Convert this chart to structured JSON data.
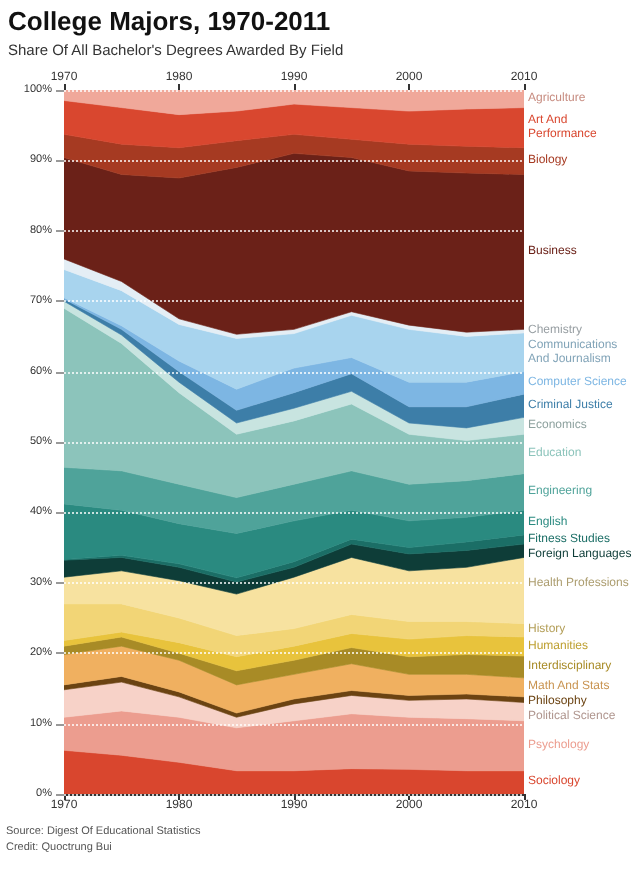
{
  "chart_data": {
    "type": "area",
    "stacked": true,
    "title": "College Majors, 1970-2011",
    "subtitle": "Share Of All Bachelor's Degrees Awarded By Field",
    "annotations": [
      "Source: Digest Of Educational Statistics",
      "Credit: Quoctrung Bui"
    ],
    "x": [
      1970,
      1975,
      1980,
      1985,
      1990,
      1995,
      2000,
      2005,
      2010
    ],
    "xlim": [
      1970,
      2010
    ],
    "xticks": [
      1970,
      1980,
      1990,
      2000,
      2010
    ],
    "x2lim": [
      1970,
      2010
    ],
    "x2ticks": [
      1970,
      1980,
      1990,
      2000,
      2010
    ],
    "ylim": [
      0,
      100
    ],
    "yticks": [
      {
        "value": 0,
        "label": "0%"
      },
      {
        "value": 10,
        "label": "10%"
      },
      {
        "value": 20,
        "label": "20%"
      },
      {
        "value": 30,
        "label": "30%"
      },
      {
        "value": 40,
        "label": "40%"
      },
      {
        "value": 50,
        "label": "50%"
      },
      {
        "value": 60,
        "label": "60%"
      },
      {
        "value": 70,
        "label": "70%"
      },
      {
        "value": 80,
        "label": "80%"
      },
      {
        "value": 90,
        "label": "90%"
      },
      {
        "value": 100,
        "label": "100%"
      }
    ],
    "grid": "y",
    "legend": "right",
    "series": [
      {
        "name": "Sociology",
        "color": "#d9462e",
        "values": [
          6.2,
          5.5,
          4.5,
          3.3,
          3.3,
          3.6,
          3.5,
          3.3,
          3.3
        ]
      },
      {
        "name": "Psychology",
        "color": "#ec9d8f",
        "values": [
          4.7,
          6.3,
          6.4,
          6.1,
          7.1,
          7.8,
          7.4,
          7.4,
          7.1
        ]
      },
      {
        "name": "Political Science",
        "color": "#f7d2c8",
        "values": [
          3.9,
          4.1,
          2.9,
          1.5,
          2.4,
          2.6,
          2.4,
          2.8,
          2.6
        ]
      },
      {
        "name": "Philosophy",
        "color": "#6b4312",
        "values": [
          0.7,
          0.8,
          0.7,
          0.6,
          0.7,
          0.7,
          0.7,
          0.7,
          0.8
        ]
      },
      {
        "name": "Math And Stats",
        "color": "#f0b060",
        "values": [
          4.3,
          4.3,
          4.5,
          4.0,
          3.5,
          3.8,
          3.0,
          2.8,
          2.7
        ]
      },
      {
        "name": "Interdisciplinary",
        "color": "#a88b26",
        "values": [
          1.2,
          1.3,
          1.0,
          2.0,
          2.0,
          2.3,
          2.5,
          2.8,
          3.1
        ]
      },
      {
        "name": "Humanities",
        "color": "#e8c33c",
        "values": [
          0.8,
          0.7,
          1.5,
          2.0,
          2.0,
          2.0,
          2.5,
          2.7,
          2.7
        ]
      },
      {
        "name": "History",
        "color": "#f2d576",
        "values": [
          5.2,
          4.0,
          3.5,
          3.0,
          2.5,
          2.7,
          2.5,
          2.0,
          1.9
        ]
      },
      {
        "name": "Health Professions",
        "color": "#f7e2a0",
        "values": [
          3.8,
          4.7,
          5.3,
          5.9,
          7.3,
          8.1,
          7.2,
          7.7,
          9.4
        ]
      },
      {
        "name": "Foreign Languages",
        "color": "#0e3d38",
        "values": [
          2.4,
          1.9,
          1.9,
          1.7,
          1.4,
          1.9,
          2.4,
          2.4,
          1.9
        ]
      },
      {
        "name": "Fitness Studies",
        "color": "#1b6e66",
        "values": [
          0.1,
          0.3,
          0.5,
          0.6,
          0.8,
          0.7,
          0.9,
          1.2,
          1.3
        ]
      },
      {
        "name": "English",
        "color": "#2a8a80",
        "values": [
          7.9,
          6.4,
          5.7,
          6.3,
          5.8,
          4.1,
          3.8,
          3.5,
          3.5
        ]
      },
      {
        "name": "Engineering",
        "color": "#4fa39a",
        "values": [
          5.2,
          5.6,
          5.6,
          5.1,
          5.2,
          5.6,
          5.2,
          5.2,
          5.2
        ]
      },
      {
        "name": "Education",
        "color": "#8cc4bb",
        "values": [
          22.6,
          18.1,
          13.0,
          9.0,
          9.0,
          9.5,
          7.1,
          5.7,
          5.6
        ]
      },
      {
        "name": "Economics",
        "color": "#c8e4e0",
        "values": [
          1.0,
          1.2,
          1.5,
          1.6,
          1.8,
          1.8,
          1.6,
          1.8,
          2.4
        ]
      },
      {
        "name": "Criminal Justice",
        "color": "#3d7ea8",
        "values": [
          0.3,
          0.8,
          1.5,
          1.8,
          2.2,
          2.5,
          2.3,
          3.0,
          3.3
        ]
      },
      {
        "name": "Computer Science",
        "color": "#7db6e3",
        "values": [
          0.2,
          0.5,
          1.5,
          3.0,
          3.5,
          2.3,
          3.5,
          3.5,
          3.2
        ]
      },
      {
        "name": "Communications And Journalism",
        "color": "#a8d4ee",
        "values": [
          4.0,
          5.0,
          5.2,
          7.2,
          4.9,
          6.0,
          7.5,
          6.5,
          5.5
        ]
      },
      {
        "name": "Chemistry",
        "color": "#e4eef5",
        "values": [
          1.5,
          1.3,
          0.8,
          0.6,
          0.6,
          0.5,
          0.6,
          0.6,
          0.5
        ]
      },
      {
        "name": "Business",
        "color": "#6b2118",
        "values": [
          14.4,
          15.2,
          20.0,
          23.7,
          25.0,
          21.9,
          21.9,
          22.6,
          22.0
        ]
      },
      {
        "name": "Biology",
        "color": "#a63a22",
        "values": [
          3.3,
          4.3,
          4.3,
          3.8,
          2.7,
          2.6,
          3.8,
          3.8,
          3.8
        ]
      },
      {
        "name": "Art And Performance",
        "color": "#d9472f",
        "values": [
          4.8,
          5.2,
          4.7,
          4.2,
          4.3,
          4.5,
          4.7,
          5.3,
          5.7
        ]
      },
      {
        "name": "Agriculture",
        "color": "#f0a89a",
        "values": [
          1.5,
          2.5,
          3.5,
          3.0,
          2.0,
          2.5,
          3.0,
          2.7,
          2.5
        ]
      }
    ]
  }
}
